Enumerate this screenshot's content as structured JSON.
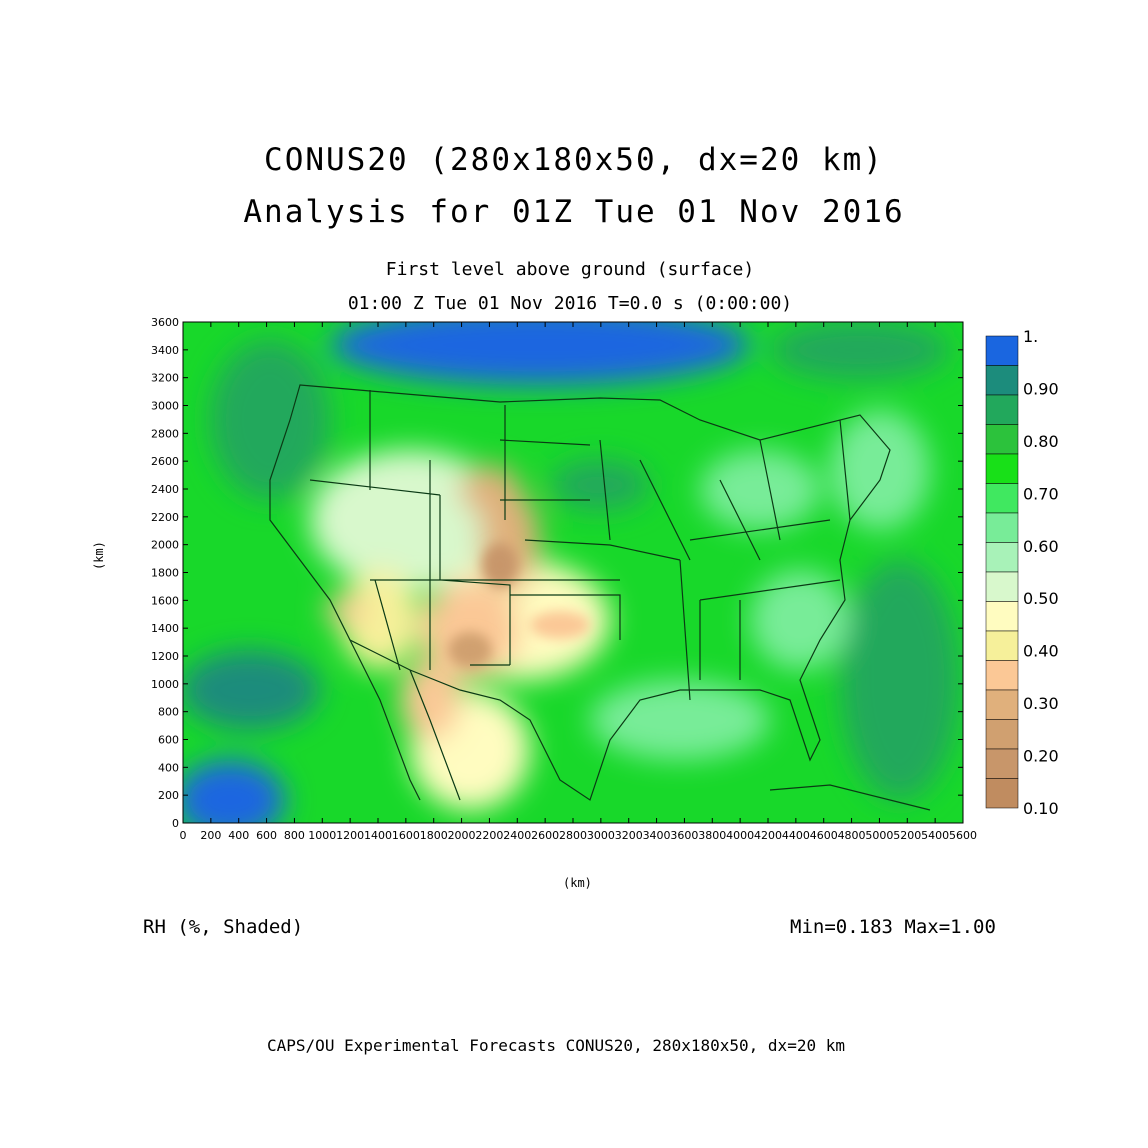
{
  "title_line1": "CONUS20 (280x180x50, dx=20 km)",
  "title_line2": "Analysis for 01Z Tue 01 Nov 2016",
  "subtitle_line1": "First level above ground (surface)",
  "subtitle_line2": "01:00 Z Tue 01 Nov 2016    T=0.0 s (0:00:00)",
  "variable_label": "RH (%, Shaded)",
  "minmax_label": "Min=0.183  Max=1.00",
  "credit": "CAPS/OU Experimental Forecasts  CONUS20, 280x180x50, dx=20 km",
  "chart_data": {
    "type": "heatmap",
    "xlabel": "(km)",
    "ylabel": "(km)",
    "xlim": [
      0,
      5600
    ],
    "ylim": [
      0,
      3600
    ],
    "x_ticks": [
      0,
      200,
      400,
      600,
      800,
      1000,
      1200,
      1400,
      1600,
      1800,
      2000,
      2200,
      2400,
      2600,
      2800,
      3000,
      3200,
      3400,
      3600,
      3800,
      4000,
      4200,
      4400,
      4600,
      4800,
      5000,
      5200,
      5400,
      5600
    ],
    "y_ticks": [
      0,
      200,
      400,
      600,
      800,
      1000,
      1200,
      1400,
      1600,
      1800,
      2000,
      2200,
      2400,
      2600,
      2800,
      3000,
      3200,
      3400,
      3600
    ],
    "colorbar": {
      "labels": [
        "1.",
        "0.90",
        "0.80",
        "0.70",
        "0.60",
        "0.50",
        "0.40",
        "0.30",
        "0.20",
        "0.10"
      ],
      "colors": [
        "#1a66e0",
        "#1c8c7c",
        "#22a85c",
        "#2cc23c",
        "#18e018",
        "#40e860",
        "#78ec98",
        "#a8f2b8",
        "#d8f8cc",
        "#fffcc0",
        "#f6f09a",
        "#fbc896",
        "#e0b07c",
        "#d0a070",
        "#c8966a",
        "#c08c60"
      ]
    },
    "stats": {
      "min": 0.183,
      "max": 1.0
    }
  }
}
